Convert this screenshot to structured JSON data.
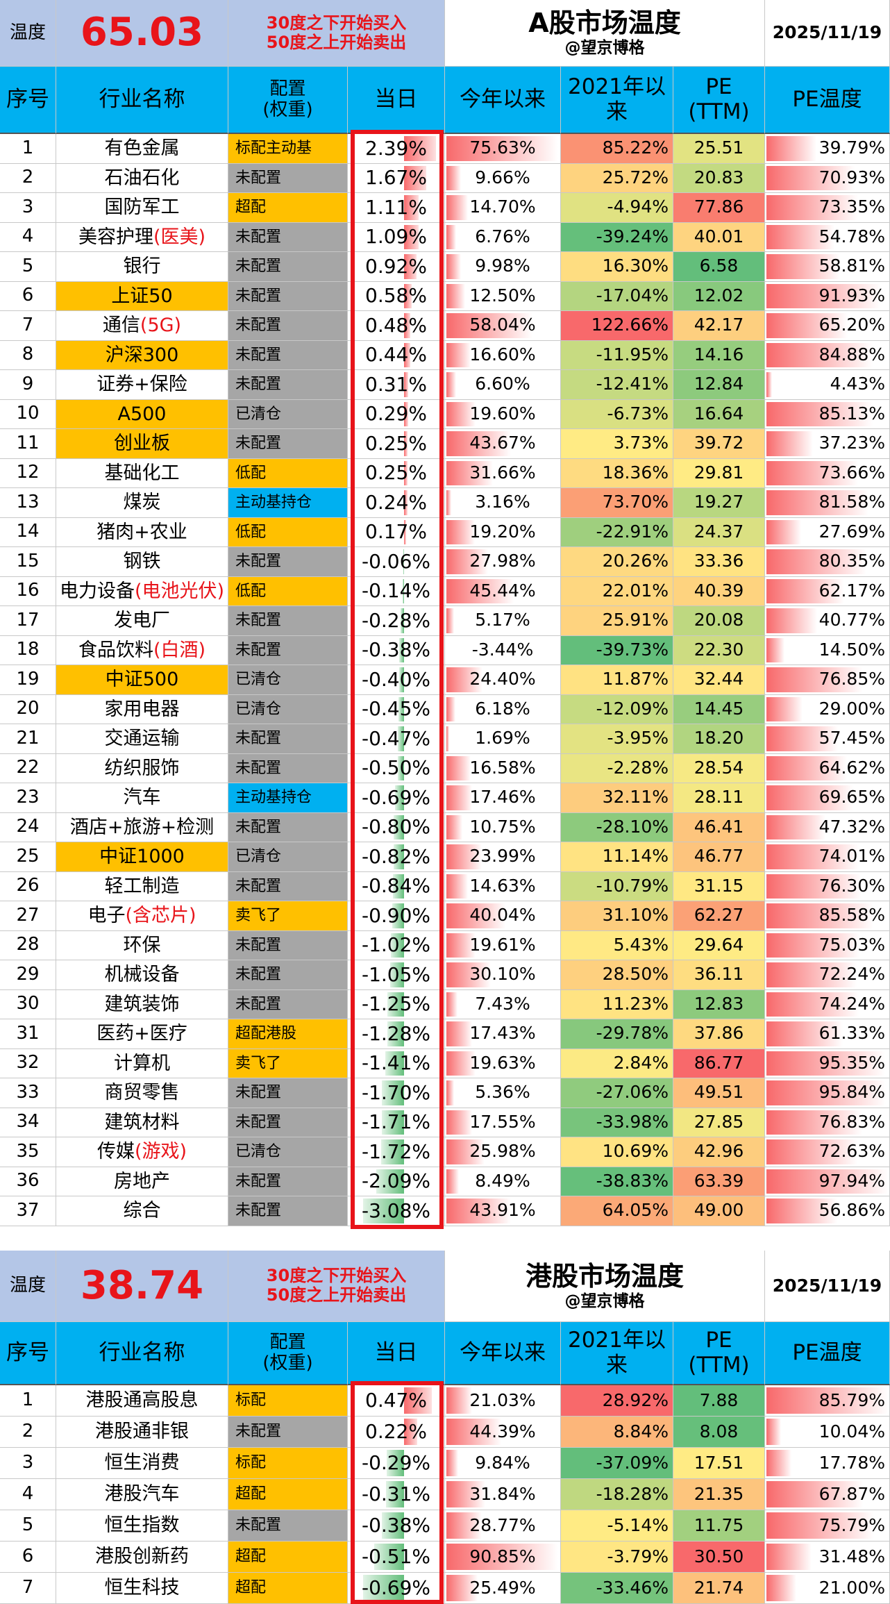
{
  "tables": [
    {
      "header": {
        "temp_label": "温度",
        "temperature": "65.03",
        "rule_buy": "30度之下开始买入",
        "rule_sell": "50度之上开始卖出",
        "title": "A股市场温度",
        "subtitle": "@望京博格",
        "date": "2025/11/19"
      },
      "columns": [
        "序号",
        "行业名称",
        "配置\n(权重)",
        "当日",
        "今年以来",
        "2021年以来",
        "PE\n(TTM)",
        "PE温度"
      ],
      "rows": [
        {
          "n": "1",
          "name": "有色金属",
          "cfg": "标配主动基",
          "cc": "#ffc000",
          "day": "2.39%",
          "ytd": "75.63%",
          "y21": "85.22%",
          "pe": "25.51",
          "pet": "39.79%"
        },
        {
          "n": "2",
          "name": "石油石化",
          "cfg": "未配置",
          "cc": "#a6a6a6",
          "day": "1.67%",
          "ytd": "9.66%",
          "y21": "25.72%",
          "pe": "20.83",
          "pet": "70.93%"
        },
        {
          "n": "3",
          "name": "国防军工",
          "cfg": "超配",
          "cc": "#ffc000",
          "day": "1.11%",
          "ytd": "14.70%",
          "y21": "-4.94%",
          "pe": "77.86",
          "pet": "73.35%"
        },
        {
          "n": "4",
          "name": "美容护理",
          "note": "(医美)",
          "cfg": "未配置",
          "cc": "#a6a6a6",
          "day": "1.09%",
          "ytd": "6.76%",
          "y21": "-39.24%",
          "pe": "40.01",
          "pet": "54.78%"
        },
        {
          "n": "5",
          "name": "银行",
          "cfg": "未配置",
          "cc": "#a6a6a6",
          "day": "0.92%",
          "ytd": "9.98%",
          "y21": "16.30%",
          "pe": "6.58",
          "pet": "58.81%"
        },
        {
          "n": "6",
          "name": "上证50",
          "hl": "#ffc000",
          "cfg": "未配置",
          "cc": "#a6a6a6",
          "day": "0.58%",
          "ytd": "12.50%",
          "y21": "-17.04%",
          "pe": "12.02",
          "pet": "91.93%"
        },
        {
          "n": "7",
          "name": "通信",
          "note": "(5G)",
          "cfg": "未配置",
          "cc": "#a6a6a6",
          "day": "0.48%",
          "ytd": "58.04%",
          "y21": "122.66%",
          "pe": "42.17",
          "pet": "65.20%"
        },
        {
          "n": "8",
          "name": "沪深300",
          "hl": "#ffc000",
          "cfg": "未配置",
          "cc": "#a6a6a6",
          "day": "0.44%",
          "ytd": "16.60%",
          "y21": "-11.95%",
          "pe": "14.16",
          "pet": "84.88%"
        },
        {
          "n": "9",
          "name": "证券+保险",
          "cfg": "未配置",
          "cc": "#a6a6a6",
          "day": "0.31%",
          "ytd": "6.60%",
          "y21": "-12.41%",
          "pe": "12.84",
          "pet": "4.43%"
        },
        {
          "n": "10",
          "name": "A500",
          "hl": "#ffc000",
          "cfg": "已清仓",
          "cc": "#a6a6a6",
          "day": "0.29%",
          "ytd": "19.60%",
          "y21": "-6.73%",
          "pe": "16.64",
          "pet": "85.13%"
        },
        {
          "n": "11",
          "name": "创业板",
          "hl": "#ffc000",
          "cfg": "未配置",
          "cc": "#a6a6a6",
          "day": "0.25%",
          "ytd": "43.67%",
          "y21": "3.73%",
          "pe": "39.72",
          "pet": "37.23%"
        },
        {
          "n": "12",
          "name": "基础化工",
          "cfg": "低配",
          "cc": "#ffc000",
          "day": "0.25%",
          "ytd": "31.66%",
          "y21": "18.36%",
          "pe": "29.81",
          "pet": "73.66%"
        },
        {
          "n": "13",
          "name": "煤炭",
          "cfg": "主动基持仓",
          "cc": "#00b0f0",
          "day": "0.24%",
          "ytd": "3.16%",
          "y21": "73.70%",
          "pe": "19.27",
          "pet": "81.58%"
        },
        {
          "n": "14",
          "name": "猪肉+农业",
          "cfg": "低配",
          "cc": "#ffc000",
          "day": "0.17%",
          "ytd": "19.20%",
          "y21": "-22.91%",
          "pe": "24.37",
          "pet": "27.69%"
        },
        {
          "n": "15",
          "name": "钢铁",
          "cfg": "未配置",
          "cc": "#a6a6a6",
          "day": "-0.06%",
          "ytd": "27.98%",
          "y21": "20.26%",
          "pe": "33.36",
          "pet": "80.35%"
        },
        {
          "n": "16",
          "name": "电力设备",
          "note": "(电池光伏)",
          "cfg": "低配",
          "cc": "#ffc000",
          "day": "-0.14%",
          "ytd": "45.44%",
          "y21": "22.01%",
          "pe": "40.39",
          "pet": "62.17%"
        },
        {
          "n": "17",
          "name": "发电厂",
          "cfg": "未配置",
          "cc": "#a6a6a6",
          "day": "-0.28%",
          "ytd": "5.17%",
          "y21": "25.91%",
          "pe": "20.08",
          "pet": "40.77%"
        },
        {
          "n": "18",
          "name": "食品饮料",
          "note": "(白酒)",
          "cfg": "未配置",
          "cc": "#a6a6a6",
          "day": "-0.38%",
          "ytd": "-3.44%",
          "y21": "-39.73%",
          "pe": "22.30",
          "pet": "14.50%"
        },
        {
          "n": "19",
          "name": "中证500",
          "hl": "#ffc000",
          "cfg": "已清仓",
          "cc": "#a6a6a6",
          "day": "-0.40%",
          "ytd": "24.40%",
          "y21": "11.87%",
          "pe": "32.44",
          "pet": "76.85%"
        },
        {
          "n": "20",
          "name": "家用电器",
          "cfg": "已清仓",
          "cc": "#a6a6a6",
          "day": "-0.45%",
          "ytd": "6.18%",
          "y21": "-12.09%",
          "pe": "14.45",
          "pet": "29.00%"
        },
        {
          "n": "21",
          "name": "交通运输",
          "cfg": "未配置",
          "cc": "#a6a6a6",
          "day": "-0.47%",
          "ytd": "1.69%",
          "y21": "-3.95%",
          "pe": "18.20",
          "pet": "57.45%"
        },
        {
          "n": "22",
          "name": "纺织服饰",
          "cfg": "未配置",
          "cc": "#a6a6a6",
          "day": "-0.50%",
          "ytd": "16.58%",
          "y21": "-2.28%",
          "pe": "28.54",
          "pet": "64.62%"
        },
        {
          "n": "23",
          "name": "汽车",
          "cfg": "主动基持仓",
          "cc": "#00b0f0",
          "day": "-0.69%",
          "ytd": "17.46%",
          "y21": "32.11%",
          "pe": "28.11",
          "pet": "69.65%"
        },
        {
          "n": "24",
          "name": "酒店+旅游+检测",
          "cfg": "未配置",
          "cc": "#a6a6a6",
          "day": "-0.80%",
          "ytd": "10.75%",
          "y21": "-28.10%",
          "pe": "46.41",
          "pet": "47.32%"
        },
        {
          "n": "25",
          "name": "中证1000",
          "hl": "#ffc000",
          "cfg": "已清仓",
          "cc": "#a6a6a6",
          "day": "-0.82%",
          "ytd": "23.99%",
          "y21": "11.14%",
          "pe": "46.77",
          "pet": "74.01%"
        },
        {
          "n": "26",
          "name": "轻工制造",
          "cfg": "未配置",
          "cc": "#a6a6a6",
          "day": "-0.84%",
          "ytd": "14.63%",
          "y21": "-10.79%",
          "pe": "31.15",
          "pet": "76.30%"
        },
        {
          "n": "27",
          "name": "电子",
          "note": "(含芯片)",
          "cfg": "卖飞了",
          "cc": "#ffc000",
          "day": "-0.90%",
          "ytd": "40.04%",
          "y21": "31.10%",
          "pe": "62.27",
          "pet": "85.58%"
        },
        {
          "n": "28",
          "name": "环保",
          "cfg": "未配置",
          "cc": "#a6a6a6",
          "day": "-1.02%",
          "ytd": "19.61%",
          "y21": "5.43%",
          "pe": "29.64",
          "pet": "75.03%"
        },
        {
          "n": "29",
          "name": "机械设备",
          "cfg": "未配置",
          "cc": "#a6a6a6",
          "day": "-1.05%",
          "ytd": "30.10%",
          "y21": "28.50%",
          "pe": "36.11",
          "pet": "72.24%"
        },
        {
          "n": "30",
          "name": "建筑装饰",
          "cfg": "未配置",
          "cc": "#a6a6a6",
          "day": "-1.25%",
          "ytd": "7.43%",
          "y21": "11.23%",
          "pe": "12.83",
          "pet": "74.24%"
        },
        {
          "n": "31",
          "name": "医药+医疗",
          "cfg": "超配港股",
          "cc": "#ffc000",
          "day": "-1.28%",
          "ytd": "17.43%",
          "y21": "-29.78%",
          "pe": "37.86",
          "pet": "61.33%"
        },
        {
          "n": "32",
          "name": "计算机",
          "cfg": "卖飞了",
          "cc": "#ffc000",
          "day": "-1.41%",
          "ytd": "19.63%",
          "y21": "2.84%",
          "pe": "86.77",
          "pet": "95.35%"
        },
        {
          "n": "33",
          "name": "商贸零售",
          "cfg": "未配置",
          "cc": "#a6a6a6",
          "day": "-1.70%",
          "ytd": "5.36%",
          "y21": "-27.06%",
          "pe": "49.51",
          "pet": "95.84%"
        },
        {
          "n": "34",
          "name": "建筑材料",
          "cfg": "未配置",
          "cc": "#a6a6a6",
          "day": "-1.71%",
          "ytd": "17.55%",
          "y21": "-33.98%",
          "pe": "27.85",
          "pet": "76.83%"
        },
        {
          "n": "35",
          "name": "传媒",
          "note": "(游戏)",
          "cfg": "已清仓",
          "cc": "#a6a6a6",
          "day": "-1.72%",
          "ytd": "25.98%",
          "y21": "10.69%",
          "pe": "42.96",
          "pet": "72.63%"
        },
        {
          "n": "36",
          "name": "房地产",
          "cfg": "未配置",
          "cc": "#a6a6a6",
          "day": "-2.09%",
          "ytd": "8.49%",
          "y21": "-38.83%",
          "pe": "63.39",
          "pet": "97.94%"
        },
        {
          "n": "37",
          "name": "综合",
          "cfg": "未配置",
          "cc": "#a6a6a6",
          "day": "-3.08%",
          "ytd": "43.91%",
          "y21": "64.05%",
          "pe": "49.00",
          "pet": "56.86%"
        }
      ]
    },
    {
      "header": {
        "temp_label": "温度",
        "temperature": "38.74",
        "rule_buy": "30度之下开始买入",
        "rule_sell": "50度之上开始卖出",
        "title": "港股市场温度",
        "subtitle": "@望京博格",
        "date": "2025/11/19"
      },
      "columns": [
        "序号",
        "行业名称",
        "配置\n(权重)",
        "当日",
        "今年以来",
        "2021年以来",
        "PE\n(TTM)",
        "PE温度"
      ],
      "rows": [
        {
          "n": "1",
          "name": "港股通高股息",
          "cfg": "标配",
          "cc": "#ffc000",
          "day": "0.47%",
          "ytd": "21.03%",
          "y21": "28.92%",
          "pe": "7.88",
          "pet": "85.79%"
        },
        {
          "n": "2",
          "name": "港股通非银",
          "cfg": "未配置",
          "cc": "#a6a6a6",
          "day": "0.22%",
          "ytd": "44.39%",
          "y21": "8.84%",
          "pe": "8.08",
          "pet": "10.04%"
        },
        {
          "n": "3",
          "name": "恒生消费",
          "cfg": "标配",
          "cc": "#ffc000",
          "day": "-0.29%",
          "ytd": "9.84%",
          "y21": "-37.09%",
          "pe": "17.51",
          "pet": "17.78%"
        },
        {
          "n": "4",
          "name": "港股汽车",
          "cfg": "超配",
          "cc": "#ffc000",
          "day": "-0.31%",
          "ytd": "31.84%",
          "y21": "-18.28%",
          "pe": "21.35",
          "pet": "67.87%"
        },
        {
          "n": "5",
          "name": "恒生指数",
          "cfg": "未配置",
          "cc": "#a6a6a6",
          "day": "-0.38%",
          "ytd": "28.77%",
          "y21": "-5.14%",
          "pe": "11.75",
          "pet": "75.79%"
        },
        {
          "n": "6",
          "name": "港股创新药",
          "cfg": "超配",
          "cc": "#ffc000",
          "day": "-0.51%",
          "ytd": "90.85%",
          "y21": "-3.79%",
          "pe": "30.50",
          "pet": "31.48%"
        },
        {
          "n": "7",
          "name": "恒生科技",
          "cfg": "超配",
          "cc": "#ffc000",
          "day": "-0.69%",
          "ytd": "25.49%",
          "y21": "-33.46%",
          "pe": "21.74",
          "pet": "21.00%"
        }
      ]
    }
  ]
}
